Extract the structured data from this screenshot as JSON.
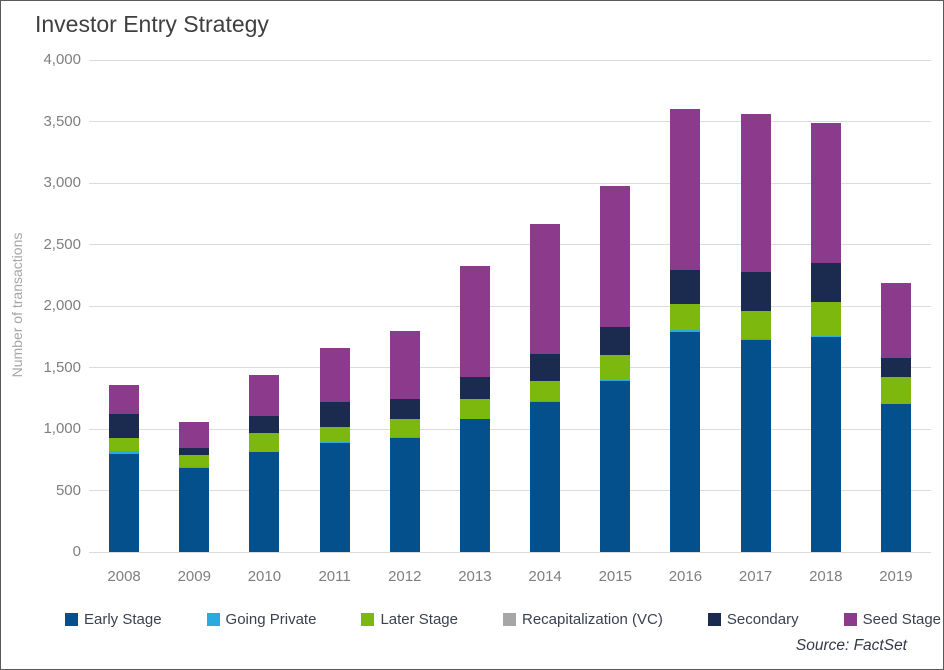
{
  "header": {
    "title": "Investor Entry Strategy"
  },
  "footer": {
    "source_note": "Source: FactSet"
  },
  "chart_data": {
    "type": "bar",
    "stacked": true,
    "title": "Investor Entry Strategy",
    "xlabel": "",
    "ylabel": "Number of transactions",
    "ylim": [
      0,
      4000
    ],
    "ytick_values": [
      0,
      500,
      1000,
      1500,
      2000,
      2500,
      3000,
      3500,
      4000
    ],
    "ytick_labels": [
      "0",
      "500",
      "1,000",
      "1,500",
      "2,000",
      "2,500",
      "3,000",
      "3,500",
      "4,000"
    ],
    "grid": "horizontal",
    "legend_position": "bottom",
    "categories": [
      "2008",
      "2009",
      "2010",
      "2011",
      "2012",
      "2013",
      "2014",
      "2015",
      "2016",
      "2017",
      "2018",
      "2019"
    ],
    "series": [
      {
        "name": "Early Stage",
        "color": "#04508C",
        "values": [
          800,
          685,
          810,
          890,
          930,
          1080,
          1220,
          1390,
          1790,
          1720,
          1750,
          1200
        ]
      },
      {
        "name": "Going Private",
        "color": "#29ABE2",
        "values": [
          20,
          5,
          5,
          5,
          5,
          5,
          10,
          10,
          15,
          10,
          10,
          5
        ]
      },
      {
        "name": "Later Stage",
        "color": "#7CB80E",
        "values": [
          110,
          95,
          150,
          120,
          150,
          160,
          160,
          200,
          210,
          230,
          270,
          215
        ]
      },
      {
        "name": "Recapitalization (VC)",
        "color": "#A6A6A6",
        "values": [
          0,
          0,
          0,
          0,
          0,
          0,
          0,
          0,
          0,
          0,
          0,
          0
        ]
      },
      {
        "name": "Secondary",
        "color": "#1B2A4F",
        "values": [
          190,
          60,
          140,
          205,
          160,
          180,
          220,
          230,
          280,
          320,
          320,
          160
        ]
      },
      {
        "name": "Seed Stage",
        "color": "#8C3A8C",
        "values": [
          240,
          215,
          335,
          440,
          555,
          900,
          1060,
          1150,
          1310,
          1280,
          1140,
          610
        ]
      }
    ],
    "totals": [
      1360,
      1060,
      1440,
      1660,
      1800,
      2325,
      2670,
      2980,
      3605,
      3560,
      3490,
      2190
    ],
    "source": "Source: FactSet"
  },
  "colors": {
    "grid": "#DCDCDC",
    "axis_text": "#7F7F7F",
    "title_text": "#3F3F3F",
    "legend_text": "#3A4150",
    "frame_border": "#595959"
  }
}
